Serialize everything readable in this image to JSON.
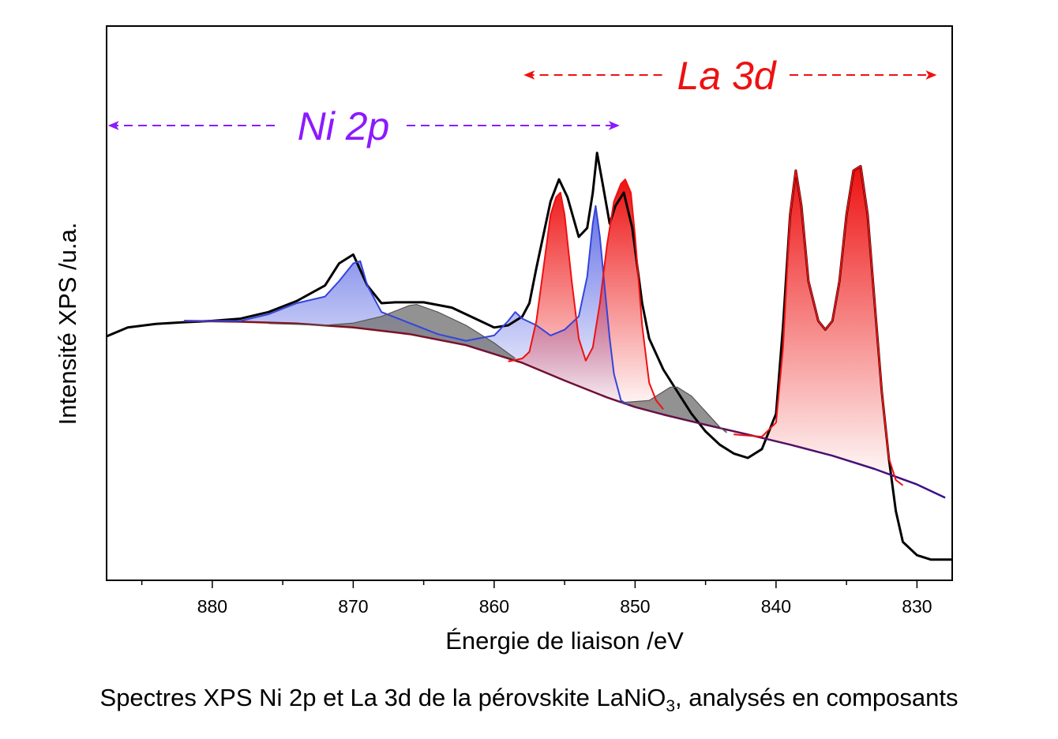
{
  "chart_data": {
    "type": "line",
    "xlabel": "Énergie de liaison /eV",
    "ylabel": "Intensité XPS /u.a.",
    "xlim": [
      887.5,
      827.5
    ],
    "x_reversed": true,
    "ylim": [
      0,
      100
    ],
    "y_tick_labels": false,
    "x_ticks": [
      880,
      870,
      860,
      850,
      840,
      830
    ],
    "grid": false,
    "annotations": [
      {
        "text": "Ni 2p",
        "color": "#8B1AFF",
        "from": 887.5,
        "to": 851
      },
      {
        "text": "La 3d",
        "color": "#EE1111",
        "from": 858,
        "to": 828.5
      }
    ],
    "series": [
      {
        "role": "measured",
        "color": "#000000",
        "x": [
          887.5,
          886,
          884,
          882,
          880,
          878,
          876,
          874,
          872,
          871,
          870,
          869,
          868,
          867,
          865,
          863,
          861,
          860,
          859,
          858,
          857.5,
          857,
          856,
          855.4,
          854.8,
          854,
          853.4,
          853,
          852.7,
          852.3,
          851.8,
          851.4,
          850.8,
          850.2,
          849.5,
          849,
          848,
          847,
          846,
          845,
          844,
          843,
          842,
          841,
          840,
          839.5,
          839,
          838.6,
          838.2,
          837.7,
          837,
          836.5,
          836,
          835.5,
          835,
          834.5,
          834,
          833.5,
          833,
          832.5,
          832,
          831.5,
          831,
          830,
          829,
          828,
          827.5
        ],
        "y": [
          52.5,
          54.5,
          55.3,
          55.7,
          56,
          56.5,
          58,
          60.5,
          64,
          69,
          71,
          64,
          60,
          60.2,
          60.2,
          59,
          56,
          54.5,
          55,
          57,
          60,
          68,
          83,
          88,
          84,
          75,
          77,
          85,
          94,
          87,
          78,
          82,
          85,
          77,
          60,
          52,
          45,
          40,
          35,
          31,
          28,
          26,
          25,
          27,
          35,
          55,
          80,
          90,
          82,
          65,
          56,
          54,
          56,
          65,
          80,
          90,
          91,
          80,
          60,
          40,
          25,
          13,
          6,
          3,
          2,
          2,
          2
        ]
      },
      {
        "role": "background",
        "color": "#8B1111",
        "x": [
          882,
          878,
          874,
          870,
          866,
          862,
          858,
          855,
          852,
          850,
          848,
          845,
          842,
          839,
          836,
          833,
          830,
          828
        ],
        "y": [
          56,
          55.8,
          55.4,
          54.5,
          53,
          50.5,
          46.5,
          42.5,
          38.7,
          36.5,
          34.8,
          32.5,
          30.3,
          28,
          25.5,
          22.5,
          19,
          16
        ]
      },
      {
        "role": "Ni 2p component",
        "color": "#3344DD",
        "x": [
          882,
          878,
          876,
          874,
          872,
          871,
          870,
          869.5,
          869,
          868,
          866,
          864,
          862,
          860,
          859,
          858.5,
          858,
          857,
          856,
          855,
          854,
          853.4,
          853,
          852.8,
          852.5,
          852.2,
          851.8,
          851.5,
          851,
          850.5
        ],
        "y": [
          56,
          56,
          57.5,
          60,
          61.5,
          65,
          69,
          69.5,
          64,
          58,
          55.5,
          53,
          51.5,
          52.7,
          56,
          58,
          56.5,
          55,
          52.7,
          54,
          57,
          66,
          78,
          82,
          75,
          65,
          52,
          44,
          38,
          37
        ]
      },
      {
        "role": "Ni 2p satellite",
        "color": "#555555",
        "x": [
          876,
          872,
          870,
          868,
          866,
          865.5,
          864,
          862,
          860,
          858.5
        ],
        "y": [
          55.4,
          55,
          55.5,
          57,
          59.5,
          59.7,
          58,
          55,
          51,
          47.5
        ]
      },
      {
        "role": "Ni 2p satellite",
        "color": "#555555",
        "x": [
          851,
          849,
          848,
          847.5,
          847,
          846,
          845,
          844,
          843.5
        ],
        "y": [
          37.5,
          38,
          40,
          41,
          41,
          39,
          35.5,
          32,
          30.7
        ]
      },
      {
        "role": "La 3d component",
        "color": "#EE1111",
        "x": [
          859,
          858,
          857.5,
          857,
          856.5,
          856,
          855.6,
          855.3,
          855,
          854.5,
          854,
          853.5,
          853,
          852.5,
          852,
          851.5,
          851,
          850.7,
          850.3,
          850,
          849.5,
          849,
          848.5,
          848
        ],
        "y": [
          46.8,
          47.5,
          49,
          56,
          68,
          80,
          84,
          85,
          80,
          65,
          52,
          47,
          50,
          60,
          73,
          83,
          87,
          88,
          85,
          75,
          55,
          42,
          38,
          36
        ]
      },
      {
        "role": "La 3d component",
        "color": "#EE1111",
        "x": [
          843,
          841,
          840,
          839.5,
          839,
          838.6,
          838.2,
          837.7,
          837,
          836.5,
          836,
          835.5,
          835,
          834.5,
          834,
          833.5,
          833,
          832.5,
          832,
          831.5,
          831
        ],
        "y": [
          30.3,
          29.8,
          33,
          50,
          80,
          90,
          82,
          65,
          56,
          54,
          56,
          65,
          80,
          90,
          91,
          80,
          60,
          40,
          25,
          20,
          18.8
        ]
      }
    ]
  },
  "caption": {
    "text_before": "Spectres XPS Ni 2p et La 3d de la pérovskite LaNiO",
    "subscript": "3",
    "text_after": ", analysés en composants"
  }
}
